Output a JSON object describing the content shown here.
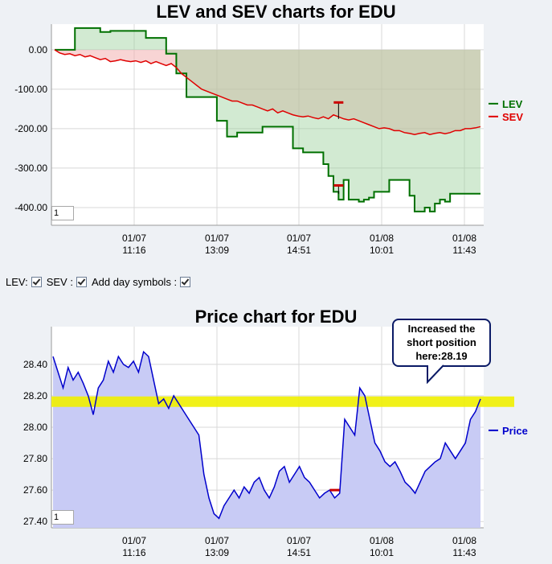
{
  "controls": {
    "lev_label": "LEV:",
    "sev_label": "SEV :",
    "day_symbols_label": "Add day symbols :"
  },
  "chart_data": [
    {
      "type": "area",
      "title": "LEV and SEV charts for EDU",
      "x_tick_labels": [
        [
          "01/07",
          "11:16"
        ],
        [
          "01/07",
          "13:09"
        ],
        [
          "01/07",
          "14:51"
        ],
        [
          "01/08",
          "10:01"
        ],
        [
          "01/08",
          "11:43"
        ]
      ],
      "y_tick_labels": [
        "0.00",
        "-100.00",
        "-200.00",
        "-300.00",
        "-400.00"
      ],
      "ylim": [
        -445,
        65
      ],
      "zoom_value": "1",
      "grid": true,
      "legend_position": "right",
      "series": [
        {
          "name": "LEV",
          "color": "#007000",
          "values": [
            0,
            0,
            0,
            0,
            55,
            55,
            55,
            55,
            55,
            45,
            45,
            48,
            48,
            48,
            48,
            48,
            48,
            48,
            30,
            30,
            30,
            30,
            -10,
            -10,
            -60,
            -60,
            -120,
            -120,
            -120,
            -120,
            -120,
            -120,
            -180,
            -180,
            -220,
            -220,
            -210,
            -210,
            -210,
            -210,
            -210,
            -195,
            -195,
            -195,
            -195,
            -195,
            -195,
            -250,
            -250,
            -260,
            -260,
            -260,
            -260,
            -290,
            -320,
            -360,
            -380,
            -330,
            -380,
            -380,
            -385,
            -380,
            -375,
            -360,
            -360,
            -360,
            -330,
            -330,
            -330,
            -330,
            -370,
            -410,
            -410,
            -400,
            -410,
            -390,
            -380,
            -385,
            -365,
            -365,
            -365,
            -365,
            -365,
            -365,
            -365
          ]
        },
        {
          "name": "SEV",
          "color": "#e00000",
          "values": [
            0,
            -8,
            -12,
            -10,
            -15,
            -12,
            -18,
            -15,
            -20,
            -25,
            -22,
            -30,
            -28,
            -25,
            -28,
            -30,
            -28,
            -32,
            -28,
            -35,
            -30,
            -35,
            -40,
            -35,
            -45,
            -60,
            -70,
            -80,
            -90,
            -100,
            -105,
            -110,
            -115,
            -120,
            -125,
            -130,
            -130,
            -135,
            -140,
            -140,
            -145,
            -150,
            -155,
            -150,
            -160,
            -155,
            -160,
            -165,
            -168,
            -170,
            -168,
            -172,
            -175,
            -170,
            -175,
            -165,
            -170,
            -175,
            -178,
            -175,
            -180,
            -185,
            -190,
            -195,
            -200,
            -198,
            -200,
            -205,
            -205,
            -210,
            -212,
            -215,
            -212,
            -210,
            -215,
            -212,
            -210,
            -213,
            -210,
            -205,
            -205,
            -200,
            -200,
            -198,
            -195
          ]
        }
      ],
      "marker_index": 56,
      "marker_value": -155,
      "marker2_index": 56,
      "marker2_value": -345
    },
    {
      "type": "area",
      "title": "Price chart for EDU",
      "x_tick_labels": [
        [
          "01/07",
          "11:16"
        ],
        [
          "01/07",
          "13:09"
        ],
        [
          "01/07",
          "14:51"
        ],
        [
          "01/08",
          "10:01"
        ],
        [
          "01/08",
          "11:43"
        ]
      ],
      "y_tick_labels": [
        "28.40",
        "28.20",
        "28.00",
        "27.80",
        "27.60",
        "27.40"
      ],
      "ylim": [
        27.36,
        28.64
      ],
      "zoom_value": "1",
      "grid": true,
      "legend_position": "right",
      "series": [
        {
          "name": "Price",
          "color": "#0000cc",
          "values": [
            28.45,
            28.35,
            28.25,
            28.38,
            28.3,
            28.35,
            28.28,
            28.2,
            28.08,
            28.25,
            28.3,
            28.42,
            28.35,
            28.45,
            28.4,
            28.38,
            28.42,
            28.35,
            28.48,
            28.45,
            28.3,
            28.15,
            28.18,
            28.12,
            28.2,
            28.15,
            28.1,
            28.05,
            28.0,
            27.95,
            27.7,
            27.55,
            27.45,
            27.42,
            27.5,
            27.55,
            27.6,
            27.55,
            27.62,
            27.58,
            27.65,
            27.68,
            27.6,
            27.55,
            27.62,
            27.72,
            27.75,
            27.65,
            27.7,
            27.75,
            27.68,
            27.65,
            27.6,
            27.55,
            27.58,
            27.6,
            27.55,
            27.58,
            28.05,
            28.0,
            27.95,
            28.25,
            28.2,
            28.05,
            27.9,
            27.85,
            27.78,
            27.75,
            27.78,
            27.72,
            27.65,
            27.62,
            27.58,
            27.65,
            27.72,
            27.75,
            27.78,
            27.8,
            27.9,
            27.85,
            27.8,
            27.85,
            27.9,
            28.05,
            28.1,
            28.18
          ]
        }
      ],
      "highlight_value": 28.16,
      "marker_index": 56,
      "marker_value": 27.6,
      "callout_text": "Increased the short position here:28.19"
    }
  ]
}
